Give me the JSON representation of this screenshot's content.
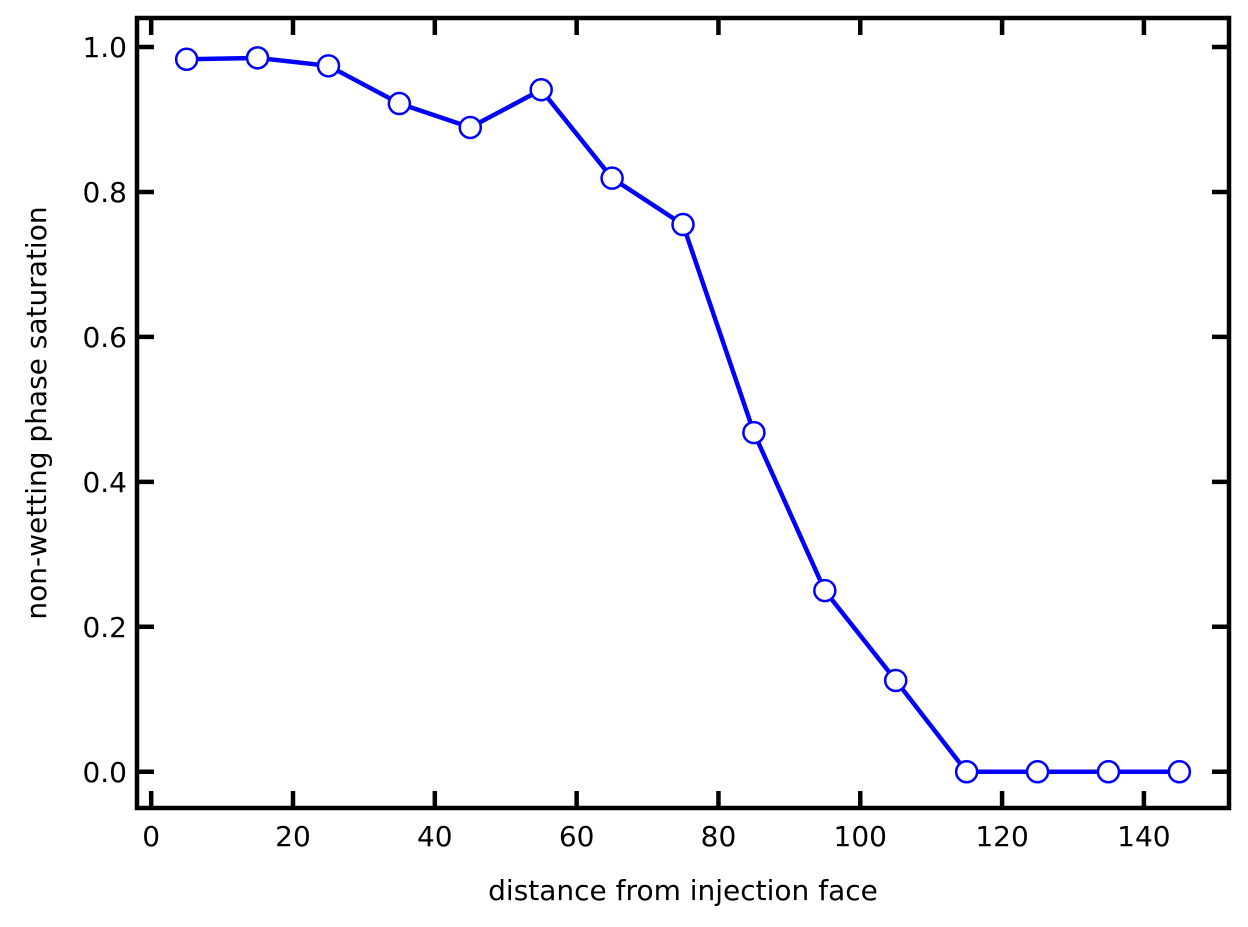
{
  "chart_data": {
    "type": "line",
    "title": "",
    "xlabel": "distance from injection face",
    "ylabel": "non-wetting phase saturation",
    "xlim": [
      -2,
      152
    ],
    "ylim": [
      -0.05,
      1.04
    ],
    "xticks": [
      0,
      20,
      40,
      60,
      80,
      100,
      120,
      140
    ],
    "xtick_labels": [
      "0",
      "20",
      "40",
      "60",
      "80",
      "100",
      "120",
      "140"
    ],
    "yticks": [
      0.0,
      0.2,
      0.4,
      0.6,
      0.8,
      1.0
    ],
    "ytick_labels": [
      "0.0",
      "0.2",
      "0.4",
      "0.6",
      "0.8",
      "1.0"
    ],
    "grid": false,
    "ticks_direction": "in",
    "ticks_on_all_sides": true,
    "series": [
      {
        "color": "#0000ff",
        "marker": "open-circle",
        "x": [
          5,
          15,
          25,
          35,
          45,
          55,
          65,
          75,
          85,
          95,
          105,
          115,
          125,
          135,
          145
        ],
        "y": [
          0.983,
          0.985,
          0.974,
          0.922,
          0.889,
          0.941,
          0.819,
          0.755,
          0.468,
          0.25,
          0.126,
          0.0,
          0.0,
          0.0,
          0.0
        ]
      }
    ]
  }
}
